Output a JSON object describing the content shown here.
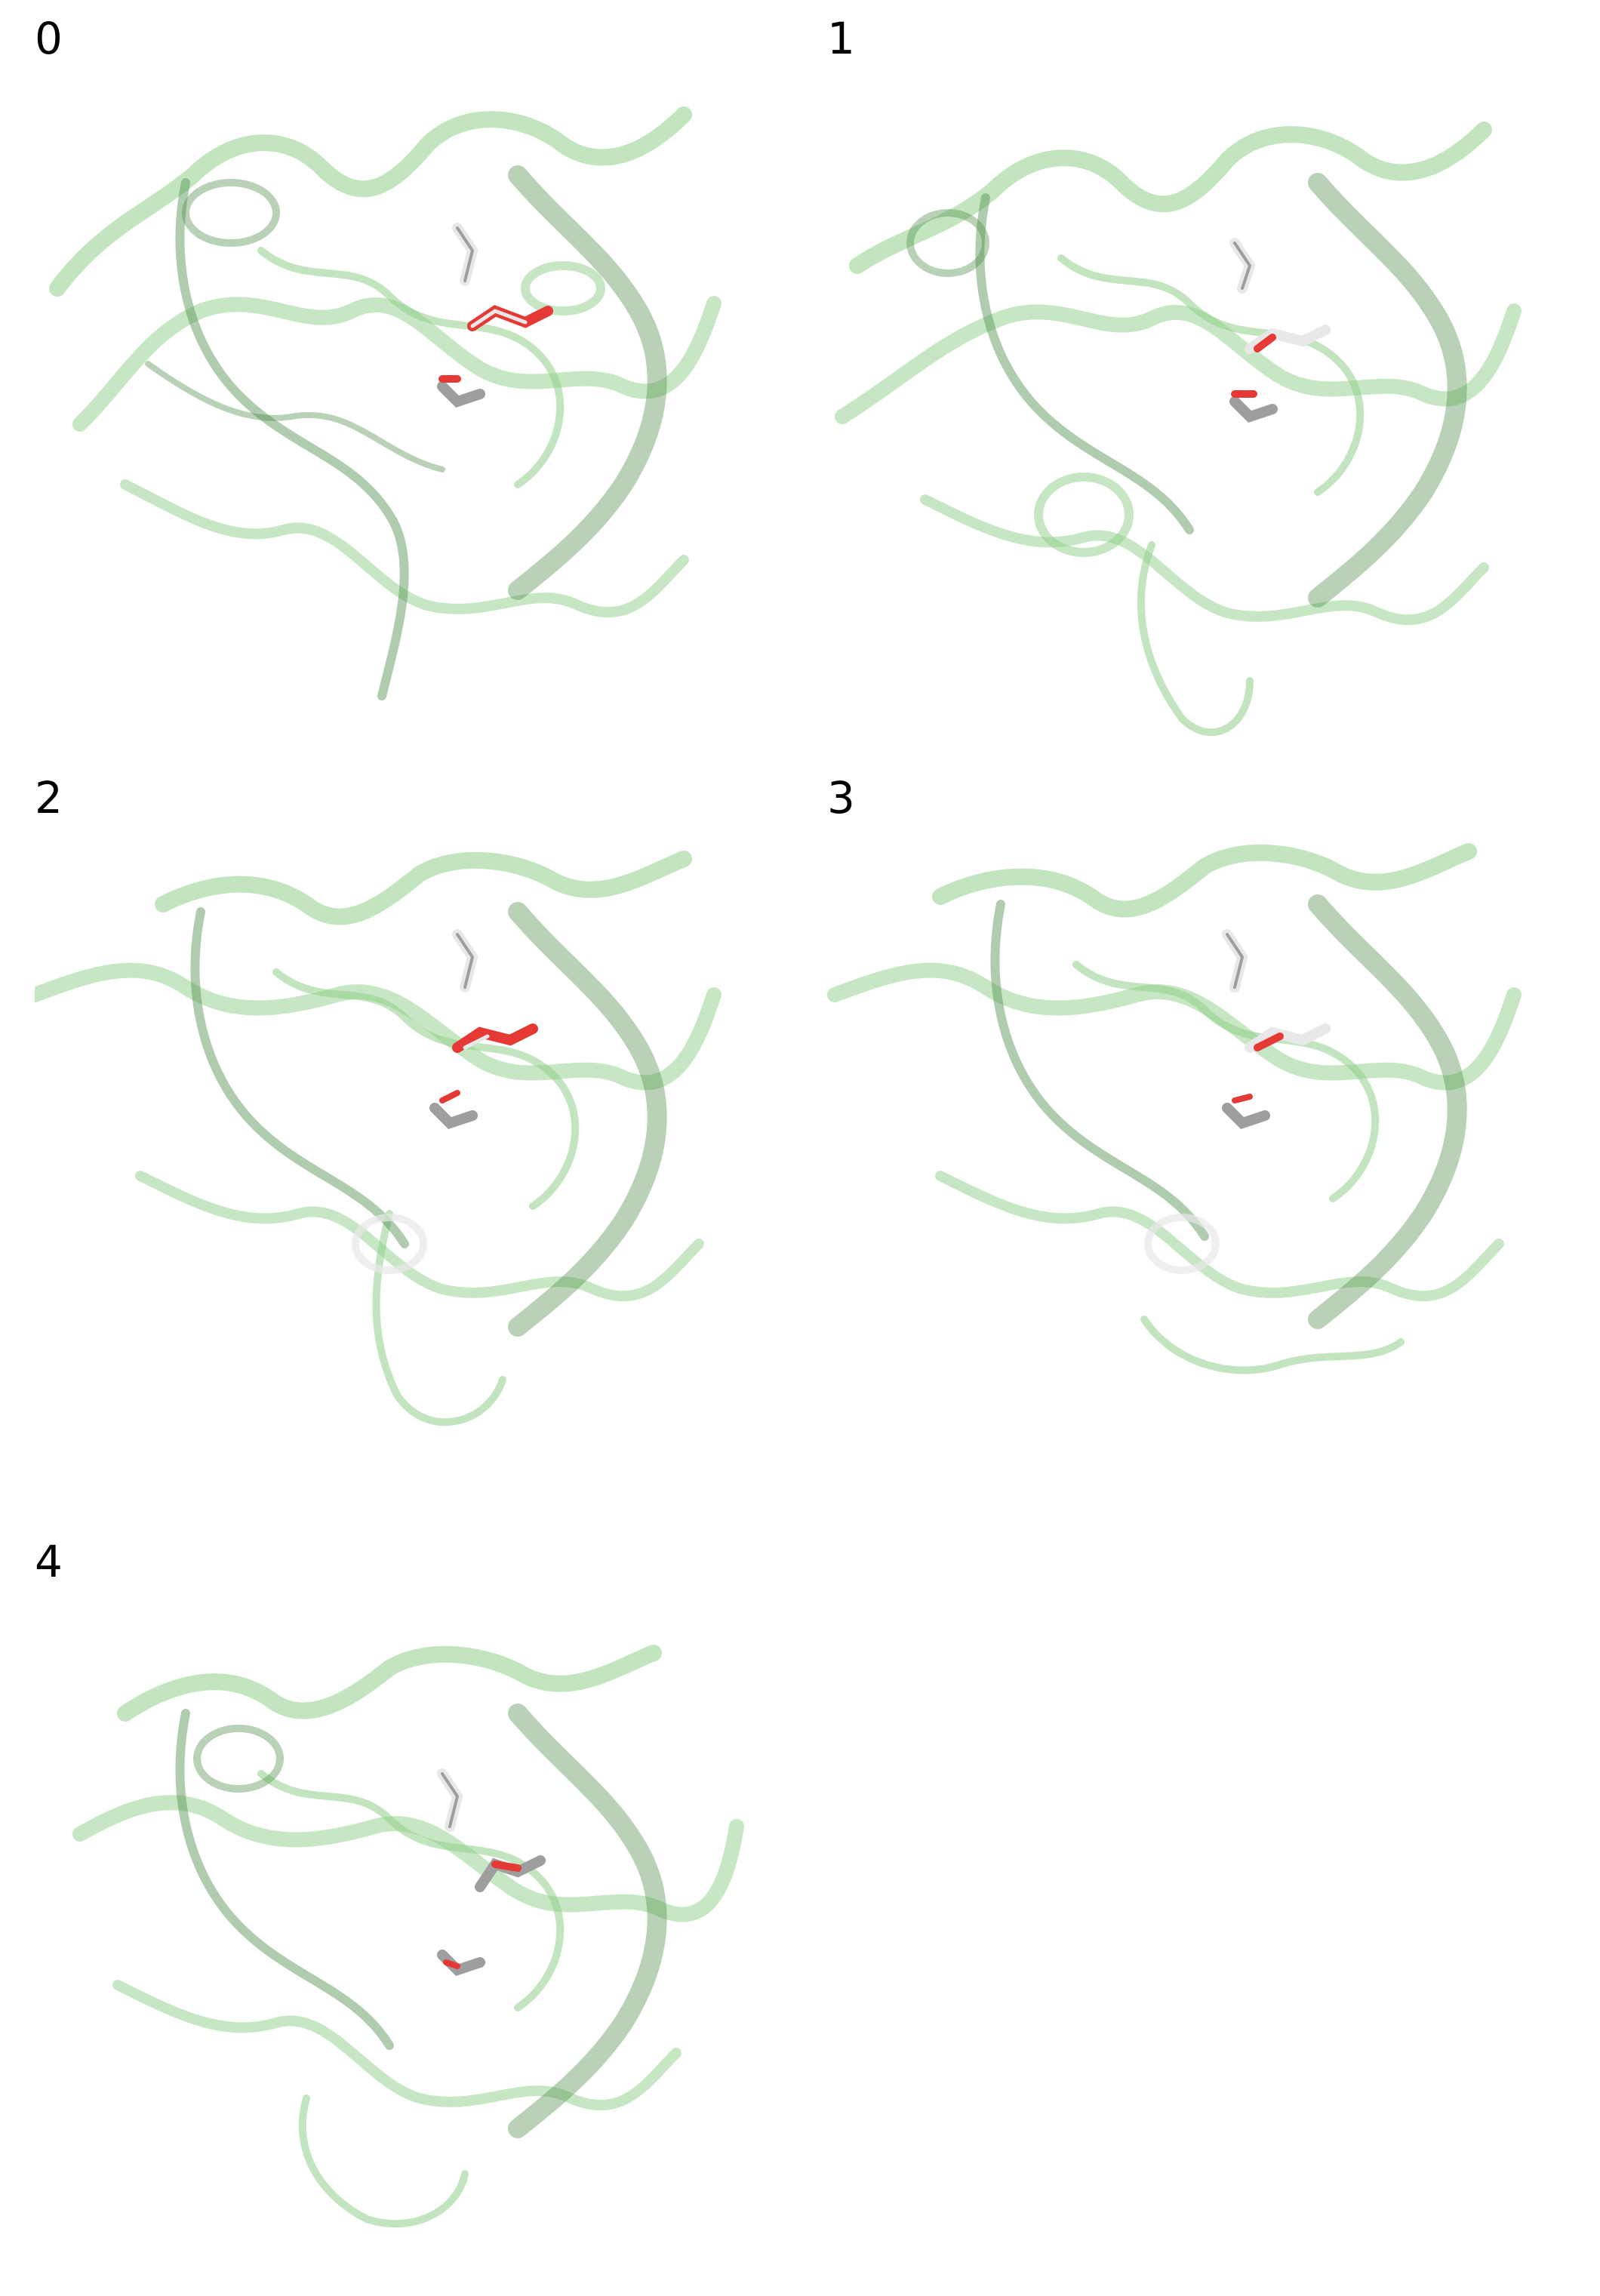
{
  "colors": {
    "ribbon": "#8fd08a",
    "ribbon_dark": "#4f8f4c",
    "ligand_red": "#e53935",
    "ligand_white": "#e8e8e8",
    "ligand_grey": "#9e9e9e",
    "background": "#ffffff"
  },
  "panels": [
    {
      "label": "0"
    },
    {
      "label": "1"
    },
    {
      "label": "2"
    },
    {
      "label": "3"
    },
    {
      "label": "4"
    }
  ]
}
